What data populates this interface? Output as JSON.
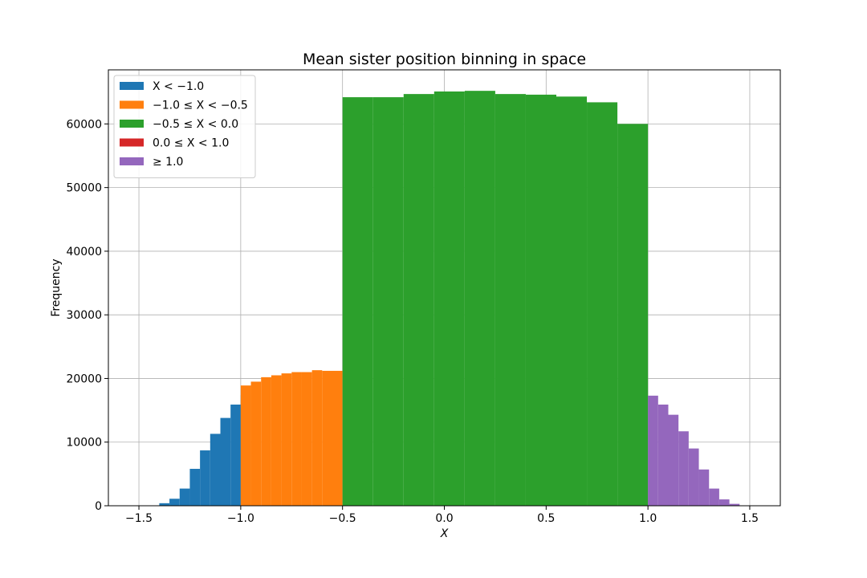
{
  "chart_data": {
    "type": "bar",
    "title": "Mean sister position binning in space",
    "xlabel": "X",
    "ylabel": "Frequency",
    "xlim": [
      -1.65,
      1.65
    ],
    "ylim": [
      0,
      68500
    ],
    "grid": true,
    "legend_position": "upper-left",
    "x_ticks": [
      -1.5,
      -1.0,
      -0.5,
      0.0,
      0.5,
      1.0,
      1.5
    ],
    "x_tick_labels": [
      "−1.5",
      "−1.0",
      "−0.5",
      "0.0",
      "0.5",
      "1.0",
      "1.5"
    ],
    "y_ticks": [
      0,
      10000,
      20000,
      30000,
      40000,
      50000,
      60000
    ],
    "y_tick_labels": [
      "0",
      "10000",
      "20000",
      "30000",
      "40000",
      "50000",
      "60000"
    ],
    "series": [
      {
        "name": "X < −1.0",
        "color": "#1f77b4",
        "bins": [
          {
            "x0": -1.45,
            "x1": -1.4,
            "count": 60
          },
          {
            "x0": -1.4,
            "x1": -1.35,
            "count": 400
          },
          {
            "x0": -1.35,
            "x1": -1.3,
            "count": 1100
          },
          {
            "x0": -1.3,
            "x1": -1.25,
            "count": 2700
          },
          {
            "x0": -1.25,
            "x1": -1.2,
            "count": 5800
          },
          {
            "x0": -1.2,
            "x1": -1.15,
            "count": 8700
          },
          {
            "x0": -1.15,
            "x1": -1.1,
            "count": 11300
          },
          {
            "x0": -1.1,
            "x1": -1.05,
            "count": 13800
          },
          {
            "x0": -1.05,
            "x1": -1.0,
            "count": 15900
          },
          {
            "x0": -1.0,
            "x1": -0.95,
            "count": 17400
          }
        ]
      },
      {
        "name": "−1.0 ≤ X < −0.5",
        "color": "#ff7f0e",
        "bins": [
          {
            "x0": -1.0,
            "x1": -0.95,
            "count": 18900
          },
          {
            "x0": -0.95,
            "x1": -0.9,
            "count": 19500
          },
          {
            "x0": -0.9,
            "x1": -0.85,
            "count": 20200
          },
          {
            "x0": -0.85,
            "x1": -0.8,
            "count": 20500
          },
          {
            "x0": -0.8,
            "x1": -0.75,
            "count": 20800
          },
          {
            "x0": -0.75,
            "x1": -0.7,
            "count": 21000
          },
          {
            "x0": -0.7,
            "x1": -0.65,
            "count": 21000
          },
          {
            "x0": -0.65,
            "x1": -0.6,
            "count": 21300
          },
          {
            "x0": -0.6,
            "x1": -0.55,
            "count": 21200
          },
          {
            "x0": -0.55,
            "x1": -0.5,
            "count": 21200
          }
        ]
      },
      {
        "name": "−0.5 ≤ X < 0.0",
        "color": "#2ca02c",
        "bins": [
          {
            "x0": -0.5,
            "x1": -0.35,
            "count": 64200
          },
          {
            "x0": -0.35,
            "x1": -0.2,
            "count": 64200
          },
          {
            "x0": -0.2,
            "x1": -0.05,
            "count": 64700
          },
          {
            "x0": -0.05,
            "x1": 0.1,
            "count": 65100
          },
          {
            "x0": 0.1,
            "x1": 0.25,
            "count": 65200
          },
          {
            "x0": 0.25,
            "x1": 0.4,
            "count": 64700
          },
          {
            "x0": 0.4,
            "x1": 0.55,
            "count": 64600
          },
          {
            "x0": 0.55,
            "x1": 0.7,
            "count": 64300
          },
          {
            "x0": 0.7,
            "x1": 0.85,
            "count": 63400
          },
          {
            "x0": 0.85,
            "x1": 1.0,
            "count": 60000
          }
        ]
      },
      {
        "name": "0.0 ≤ X < 1.0",
        "color": "#d62728",
        "bins": []
      },
      {
        "name": "≥ 1.0",
        "color": "#9467bd",
        "bins": [
          {
            "x0": 1.0,
            "x1": 1.05,
            "count": 17300
          },
          {
            "x0": 1.05,
            "x1": 1.1,
            "count": 15900
          },
          {
            "x0": 1.1,
            "x1": 1.15,
            "count": 14300
          },
          {
            "x0": 1.15,
            "x1": 1.2,
            "count": 11700
          },
          {
            "x0": 1.2,
            "x1": 1.25,
            "count": 9000
          },
          {
            "x0": 1.25,
            "x1": 1.3,
            "count": 5700
          },
          {
            "x0": 1.3,
            "x1": 1.35,
            "count": 2700
          },
          {
            "x0": 1.35,
            "x1": 1.4,
            "count": 1000
          },
          {
            "x0": 1.4,
            "x1": 1.45,
            "count": 300
          }
        ]
      }
    ]
  }
}
